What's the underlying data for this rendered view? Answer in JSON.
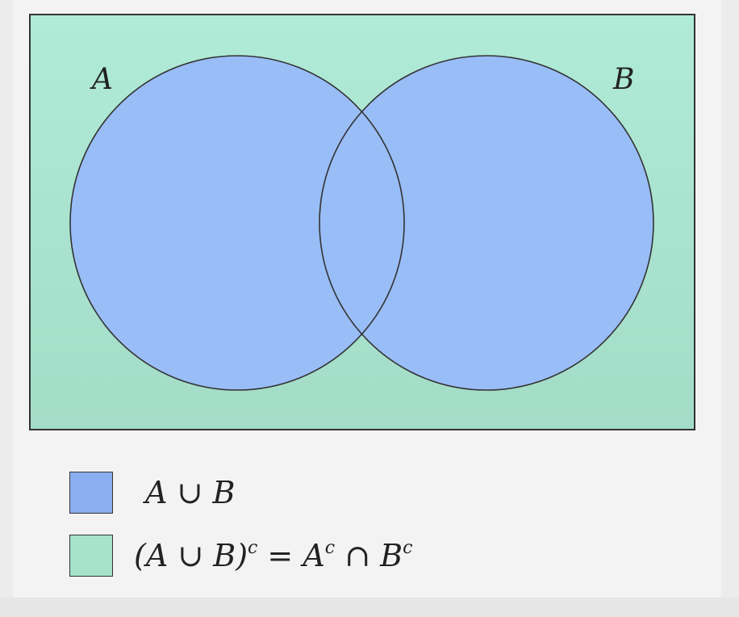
{
  "diagram": {
    "set_a_label": "A",
    "set_b_label": "B",
    "colors": {
      "universe_fill": "#aee8d5",
      "set_fill": "#99bdf6",
      "outline": "#333333"
    }
  },
  "legend": {
    "items": [
      {
        "swatch_color": "#8aaef0",
        "label": "A ∪ B"
      },
      {
        "swatch_color": "#a6e2cc",
        "label_main": "(A ∪ B)",
        "label_sup1": "c",
        "label_mid": " = A",
        "label_sup2": "c",
        "label_mid2": " ∩ B",
        "label_sup3": "c"
      }
    ]
  }
}
